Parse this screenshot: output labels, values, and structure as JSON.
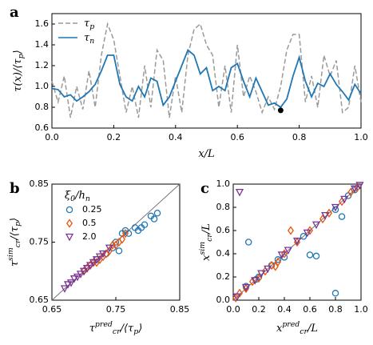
{
  "chart_data": [
    {
      "type": "line",
      "panel_label": "a",
      "x_label": [
        "x/L"
      ],
      "y_label": [
        "τ(x)/⟨τ",
        {
          "sub": "p"
        },
        "⟩"
      ],
      "xlim": [
        0,
        1
      ],
      "ylim": [
        0.6,
        1.7
      ],
      "xticks": [
        {
          "value": 0,
          "label": "0.0"
        },
        0.2,
        0.4,
        0.6,
        0.8,
        {
          "value": 1,
          "label": "1.0"
        }
      ],
      "yticks": [
        0.6,
        0.8,
        {
          "value": 1,
          "label": "1.0"
        },
        1.2,
        1.4,
        1.6
      ],
      "legend": "upper left",
      "x": [
        0,
        0.02,
        0.04,
        0.06,
        0.08,
        0.1,
        0.12,
        0.14,
        0.16,
        0.18,
        0.2,
        0.22,
        0.24,
        0.26,
        0.28,
        0.3,
        0.32,
        0.34,
        0.36,
        0.38,
        0.4,
        0.42,
        0.44,
        0.46,
        0.48,
        0.5,
        0.52,
        0.54,
        0.56,
        0.58,
        0.6,
        0.62,
        0.64,
        0.66,
        0.68,
        0.7,
        0.72,
        0.74,
        0.76,
        0.78,
        0.8,
        0.82,
        0.84,
        0.86,
        0.88,
        0.9,
        0.92,
        0.94,
        0.96,
        0.98,
        1
      ],
      "series": [
        {
          "name": [
            "τ",
            {
              "sub": "p"
            }
          ],
          "color": "#9a9a9a",
          "dash": true,
          "values": [
            1.05,
            0.85,
            1.1,
            0.7,
            1.0,
            0.78,
            1.15,
            0.8,
            1.3,
            1.6,
            1.45,
            1.1,
            0.75,
            1.0,
            0.7,
            1.2,
            0.8,
            1.35,
            1.25,
            0.7,
            1.1,
            0.75,
            1.3,
            1.55,
            1.6,
            1.4,
            1.3,
            0.8,
            1.2,
            0.75,
            1.4,
            0.9,
            1.1,
            0.95,
            0.75,
            0.9,
            0.78,
            1.0,
            1.35,
            1.5,
            1.5,
            0.85,
            1.1,
            0.8,
            1.3,
            1.1,
            1.25,
            0.75,
            0.8,
            1.2,
            0.85
          ]
        },
        {
          "name": [
            "τ",
            {
              "sub": "n"
            }
          ],
          "color": "#1f77b4",
          "dash": false,
          "values": [
            0.98,
            0.97,
            0.9,
            0.92,
            0.86,
            0.9,
            0.95,
            1.02,
            1.15,
            1.3,
            1.3,
            1.02,
            0.9,
            0.86,
            1.0,
            0.9,
            1.08,
            1.05,
            0.82,
            0.9,
            1.05,
            1.2,
            1.35,
            1.3,
            1.12,
            1.18,
            0.96,
            1.0,
            0.96,
            1.18,
            1.22,
            1.05,
            0.9,
            1.08,
            0.95,
            0.82,
            0.84,
            0.8,
            0.88,
            1.1,
            1.28,
            1.05,
            0.9,
            1.03,
            1.0,
            1.12,
            1.02,
            0.95,
            0.87,
            1.02,
            0.93
          ]
        }
      ],
      "point": {
        "x": 0.74,
        "y": 0.77,
        "color": "#000000"
      }
    },
    {
      "type": "scatter",
      "panel_label": "b",
      "x_label": [
        "τ",
        {
          "sup": "pred",
          "sub": "cr"
        },
        "/⟨τ",
        {
          "sub": "p"
        },
        "⟩"
      ],
      "y_label": [
        "τ",
        {
          "sup": "sim",
          "sub": "cr"
        },
        "/⟨τ",
        {
          "sub": "p"
        },
        "⟩"
      ],
      "xlim": [
        0.65,
        0.85
      ],
      "ylim": [
        0.65,
        0.85
      ],
      "xticks": [
        0.65,
        0.75,
        0.85
      ],
      "yticks": [
        0.65,
        0.75,
        0.85
      ],
      "diagonal": true,
      "diagonal_color": "#777777",
      "legend_title": [
        "ξ",
        {
          "sub": "0"
        },
        "/h",
        {
          "sub": "n"
        }
      ],
      "series": [
        {
          "name": "0.25",
          "color": "#1f77b4",
          "marker": "circle",
          "x": [
            0.745,
            0.75,
            0.755,
            0.76,
            0.765,
            0.77,
            0.78,
            0.785,
            0.795,
            0.805,
            0.81,
            0.815,
            0.79,
            0.72,
            0.735
          ],
          "y": [
            0.74,
            0.75,
            0.735,
            0.765,
            0.77,
            0.765,
            0.775,
            0.77,
            0.78,
            0.795,
            0.79,
            0.8,
            0.775,
            0.72,
            0.73
          ]
        },
        {
          "name": "0.5",
          "color": "#e6550d",
          "marker": "diamond",
          "x": [
            0.7,
            0.705,
            0.71,
            0.715,
            0.72,
            0.725,
            0.73,
            0.735,
            0.74,
            0.745,
            0.75,
            0.755,
            0.76,
            0.765
          ],
          "y": [
            0.7,
            0.705,
            0.71,
            0.715,
            0.715,
            0.72,
            0.725,
            0.73,
            0.735,
            0.745,
            0.745,
            0.75,
            0.755,
            0.765
          ]
        },
        {
          "name": "2.0",
          "color": "#7b3294",
          "marker": "triangle",
          "x": [
            0.67,
            0.675,
            0.68,
            0.685,
            0.69,
            0.695,
            0.7,
            0.705,
            0.71,
            0.715,
            0.72,
            0.725,
            0.73,
            0.74
          ],
          "y": [
            0.67,
            0.677,
            0.68,
            0.687,
            0.69,
            0.695,
            0.7,
            0.705,
            0.71,
            0.715,
            0.72,
            0.725,
            0.73,
            0.74
          ]
        }
      ]
    },
    {
      "type": "scatter",
      "panel_label": "c",
      "x_label": [
        "x",
        {
          "sup": "pred",
          "sub": "cr"
        },
        "/L"
      ],
      "y_label": [
        "x",
        {
          "sup": "sim",
          "sub": "cr"
        },
        "/L"
      ],
      "xlim": [
        0,
        1
      ],
      "ylim": [
        0,
        1
      ],
      "xticks": [
        {
          "value": 0,
          "label": "0.0"
        },
        0.2,
        0.4,
        0.6,
        0.8,
        {
          "value": 1,
          "label": "1.0"
        }
      ],
      "yticks": [
        {
          "value": 0,
          "label": "0.0"
        },
        0.2,
        0.4,
        0.6,
        0.8,
        {
          "value": 1,
          "label": "1.0"
        }
      ],
      "diagonal": true,
      "diagonal_color": "#777777",
      "series": [
        {
          "color": "#1f77b4",
          "marker": "circle",
          "x": [
            0.12,
            0.6,
            0.65,
            0.8,
            0.85,
            0.8,
            0.9,
            0.35,
            0.4,
            0.18,
            0.1,
            0.3,
            0.95,
            0.2,
            0.55
          ],
          "y": [
            0.5,
            0.39,
            0.38,
            0.06,
            0.72,
            0.78,
            0.9,
            0.35,
            0.37,
            0.18,
            0.12,
            0.3,
            0.95,
            0.2,
            0.55
          ]
        },
        {
          "color": "#e6550d",
          "marker": "diamond",
          "x": [
            0.02,
            0.05,
            0.1,
            0.15,
            0.2,
            0.25,
            0.3,
            0.35,
            0.4,
            0.45,
            0.5,
            0.6,
            0.7,
            0.75,
            0.85,
            0.92,
            0.97,
            0.33
          ],
          "y": [
            0.02,
            0.06,
            0.1,
            0.16,
            0.19,
            0.25,
            0.3,
            0.33,
            0.4,
            0.6,
            0.5,
            0.6,
            0.7,
            0.75,
            0.85,
            0.93,
            0.97,
            0.29
          ]
        },
        {
          "color": "#7b3294",
          "marker": "triangle",
          "x": [
            0.05,
            0.03,
            0.1,
            0.17,
            0.22,
            0.27,
            0.38,
            0.43,
            0.5,
            0.58,
            0.65,
            0.72,
            0.8,
            0.87,
            0.95,
            0.99
          ],
          "y": [
            0.93,
            0.03,
            0.11,
            0.17,
            0.23,
            0.27,
            0.39,
            0.43,
            0.51,
            0.58,
            0.65,
            0.73,
            0.8,
            0.87,
            0.96,
            0.99
          ]
        }
      ]
    }
  ]
}
